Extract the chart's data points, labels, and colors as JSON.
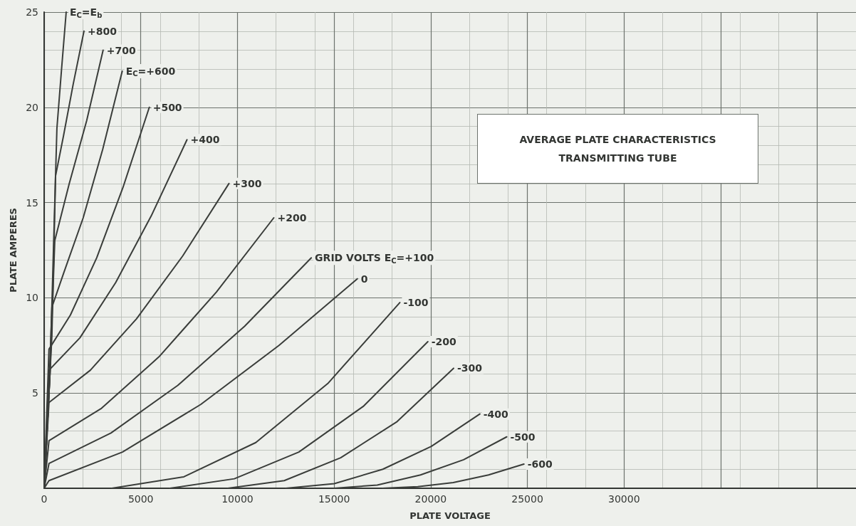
{
  "chart_data": {
    "type": "line",
    "title": "AVERAGE PLATE CHARACTERISTICS",
    "subtitle": "TRANSMITTING TUBE",
    "xlabel": "PLATE VOLTAGE",
    "ylabel": "PLATE AMPERES",
    "xlim": [
      0,
      42000
    ],
    "xticks": [
      0,
      5000,
      10000,
      15000,
      20000,
      25000,
      30000,
      {
        "value": 35000,
        "label": null
      },
      {
        "value": 40000,
        "label": null
      }
    ],
    "ylim": [
      0,
      25
    ],
    "yticks": [
      {
        "value": 0,
        "label": null
      },
      5,
      10,
      15,
      20,
      25
    ],
    "grid": true,
    "legend": false,
    "marker": "none",
    "line_style": "solid",
    "series": [
      {
        "name": "E$_{C}$=E$_{b}$",
        "color": "#3a3d3a",
        "x": [
          0,
          300,
          550,
          660,
          900,
          1140
        ],
        "values": [
          0,
          6,
          15,
          18.9,
          22,
          25
        ]
      },
      {
        "name": "+800",
        "color": "#3a3d3a",
        "x": [
          0,
          400,
          590,
          1000,
          1500,
          2060
        ],
        "values": [
          0,
          8,
          16.4,
          18.5,
          21.2,
          24
        ]
      },
      {
        "name": "+700",
        "color": "#3a3d3a",
        "x": [
          0,
          300,
          550,
          1300,
          2200,
          3050
        ],
        "values": [
          0,
          6,
          13,
          16,
          19.3,
          23
        ]
      },
      {
        "name": "E$_{C}$=+600",
        "color": "#3a3d3a",
        "x": [
          0,
          250,
          400,
          1010,
          2020,
          3030,
          4040
        ],
        "values": [
          0,
          5,
          9.5,
          11.3,
          14.2,
          17.8,
          21.9
        ]
      },
      {
        "name": "+500",
        "color": "#3a3d3a",
        "x": [
          0,
          250,
          1360,
          2720,
          4080,
          5440
        ],
        "values": [
          0,
          7.3,
          9.1,
          12.1,
          15.8,
          20
        ]
      },
      {
        "name": "+400",
        "color": "#3a3d3a",
        "x": [
          0,
          250,
          1850,
          3700,
          5540,
          7390
        ],
        "values": [
          0,
          6.2,
          7.9,
          10.8,
          14.3,
          18.3
        ]
      },
      {
        "name": "+300",
        "color": "#3a3d3a",
        "x": [
          0,
          250,
          2390,
          4780,
          7170,
          9560
        ],
        "values": [
          0,
          4.5,
          6.2,
          8.9,
          12.2,
          16
        ]
      },
      {
        "name": "+200",
        "color": "#3a3d3a",
        "x": [
          0,
          250,
          2970,
          5940,
          8910,
          11880
        ],
        "values": [
          0,
          2.5,
          4.2,
          6.9,
          10.3,
          14.2
        ]
      },
      {
        "name": "GRID VOLTS E$_{C}$=+100",
        "color": "#3a3d3a",
        "x": [
          0,
          250,
          3455,
          6910,
          10365,
          13820
        ],
        "values": [
          0,
          1.3,
          2.9,
          5.4,
          8.5,
          12.1
        ]
      },
      {
        "name": "0",
        "color": "#3a3d3a",
        "x": [
          0,
          250,
          4050,
          8100,
          12150,
          16200
        ],
        "values": [
          0,
          0.4,
          1.9,
          4.4,
          7.5,
          11
        ]
      },
      {
        "name": "-100",
        "color": "#3a3d3a",
        "x": [
          3500,
          7225,
          10950,
          14675,
          18400
        ],
        "values": [
          0,
          0.6,
          2.4,
          5.5,
          9.75
        ]
      },
      {
        "name": "-200",
        "color": "#3a3d3a",
        "x": [
          6500,
          9840,
          13175,
          16510,
          19850
        ],
        "values": [
          0,
          0.5,
          1.9,
          4.3,
          7.7
        ]
      },
      {
        "name": "-300",
        "color": "#3a3d3a",
        "x": [
          9500,
          12420,
          15340,
          18260,
          21180
        ],
        "values": [
          0,
          0.4,
          1.6,
          3.5,
          6.3
        ]
      },
      {
        "name": "-400",
        "color": "#3a3d3a",
        "x": [
          12500,
          15010,
          17520,
          20030,
          22540
        ],
        "values": [
          0,
          0.24,
          1,
          2.2,
          3.9
        ]
      },
      {
        "name": "-500",
        "color": "#3a3d3a",
        "x": [
          15000,
          17230,
          19470,
          21700,
          23930
        ],
        "values": [
          0,
          0.17,
          0.7,
          1.5,
          2.7
        ]
      },
      {
        "name": "-600",
        "color": "#3a3d3a",
        "x": [
          17500,
          19330,
          21160,
          22990,
          24820
        ],
        "values": [
          0,
          0.08,
          0.3,
          0.7,
          1.27
        ]
      }
    ]
  }
}
